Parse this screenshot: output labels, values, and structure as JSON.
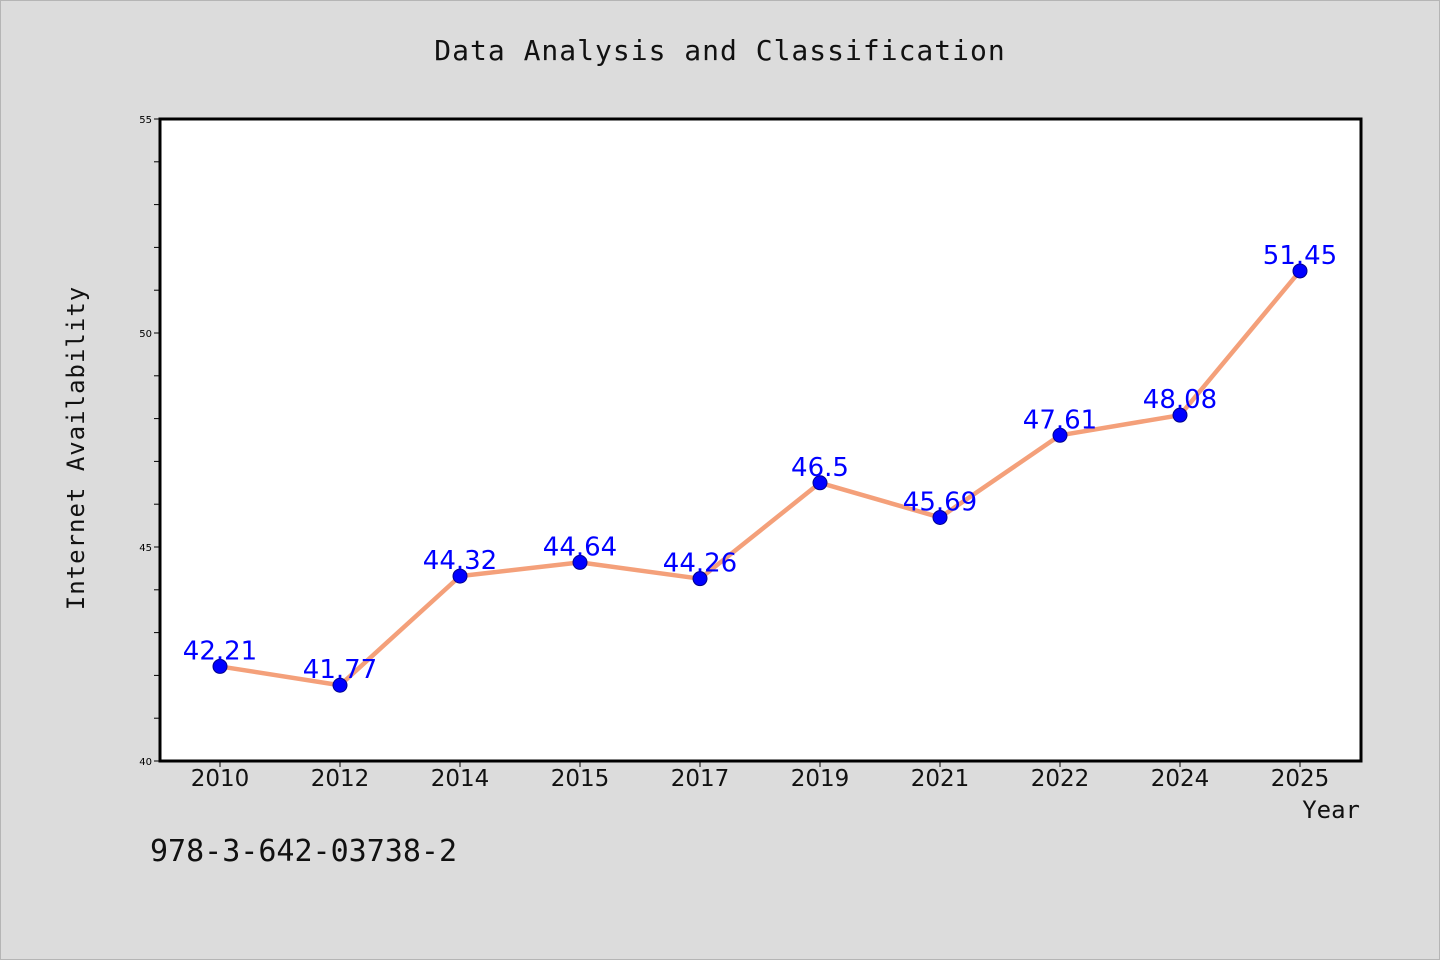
{
  "chart_data": {
    "type": "line",
    "title": "Data Analysis and Classification",
    "xlabel": "Year",
    "ylabel": "Internet Availability",
    "categories": [
      "2010",
      "2012",
      "2014",
      "2015",
      "2017",
      "2019",
      "2021",
      "2022",
      "2024",
      "2025"
    ],
    "values": [
      42.21,
      41.77,
      44.32,
      44.64,
      44.26,
      46.5,
      45.69,
      47.61,
      48.08,
      51.45
    ],
    "ylim": [
      40,
      55
    ],
    "yticks": [
      40,
      45,
      50,
      55
    ],
    "grid": false,
    "line_color": "#f4a07a",
    "marker_color": "#0000ff",
    "label_color": "#0000ff"
  },
  "annotation": "978-3-642-03738-2"
}
